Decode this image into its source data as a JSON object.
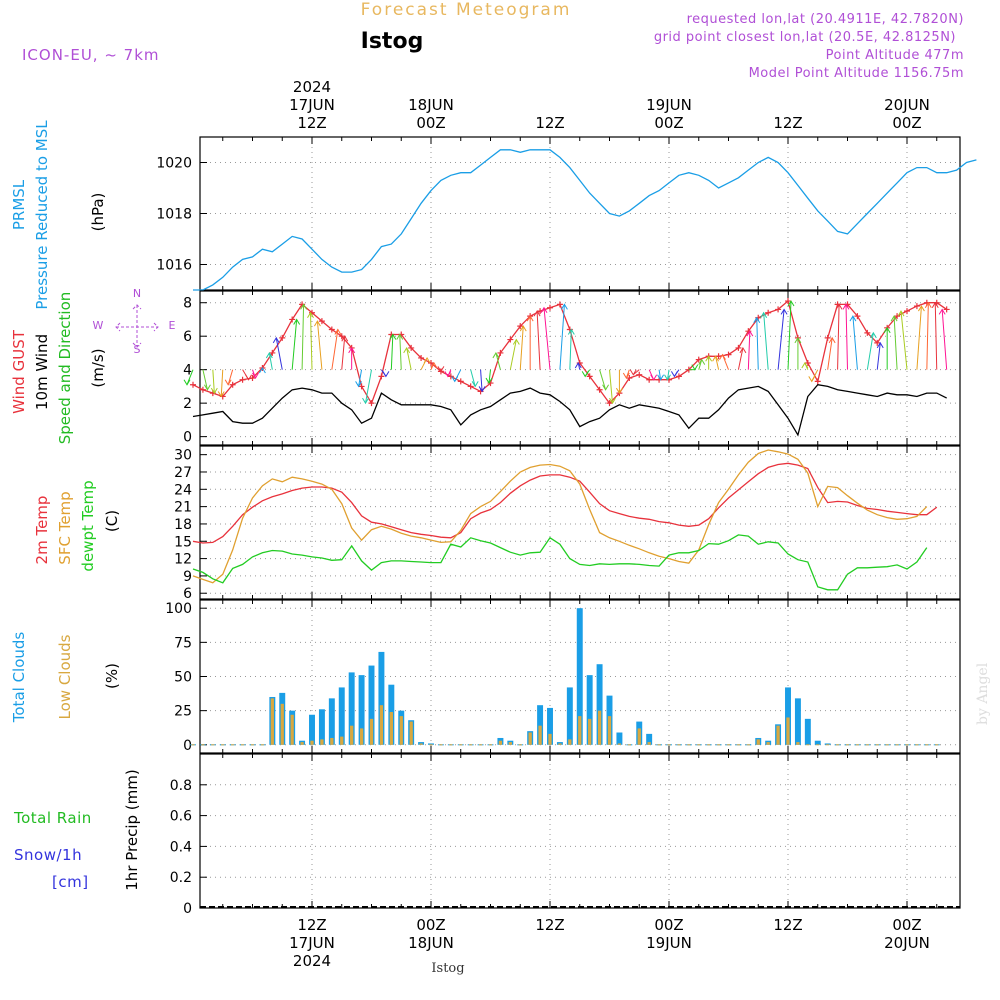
{
  "header": {
    "title": "Forecast Meteogram",
    "location": "Istog",
    "model": "ICON-EU,  ~ 7km",
    "requested": "requested lon,lat (20.4911E, 42.7820N)",
    "grid": "grid point closest lon,lat (20.5E, 42.8125N)",
    "point_alt": "Point Altitude 477m",
    "model_alt": "Model Point Altitude 1156.75m",
    "watermark": "by Angel",
    "footer_location": "Istog"
  },
  "time_axis": {
    "top_labels": [
      {
        "lines": [
          "2024",
          "17JUN",
          "12Z"
        ],
        "t": 12
      },
      {
        "lines": [
          "18JUN",
          "00Z"
        ],
        "t": 24
      },
      {
        "lines": [
          "12Z"
        ],
        "t": 36
      },
      {
        "lines": [
          "19JUN",
          "00Z"
        ],
        "t": 48
      },
      {
        "lines": [
          "12Z"
        ],
        "t": 60
      },
      {
        "lines": [
          "20JUN",
          "00Z"
        ],
        "t": 72
      }
    ],
    "bottom_labels": [
      {
        "lines": [
          "12Z",
          "17JUN",
          "2024"
        ],
        "t": 12
      },
      {
        "lines": [
          "00Z",
          "18JUN"
        ],
        "t": 24
      },
      {
        "lines": [
          "12Z"
        ],
        "t": 36
      },
      {
        "lines": [
          "00Z",
          "19JUN"
        ],
        "t": 48
      },
      {
        "lines": [
          "12Z"
        ],
        "t": 60
      },
      {
        "lines": [
          "00Z",
          "20JUN"
        ],
        "t": 72
      }
    ]
  },
  "colors": {
    "pressure": "#1a9ee6",
    "gust": "#e8323c",
    "wind": "#000000",
    "wind_dir_label": "#22bb22",
    "compass": "#b04fd6",
    "temp2m": "#e8323c",
    "sfc": "#e0a030",
    "dewpt": "#22cc22",
    "total_cloud": "#1a9ee6",
    "low_cloud": "#d8a840",
    "rain": "#22bb22",
    "snow": "#3333dd",
    "title": "#e8b860",
    "info": "#b04fd6"
  },
  "chart_data": [
    {
      "type": "line",
      "panel": "pressure",
      "ylabels": [
        "PRMSL",
        "Pressure Reduced to MSL",
        "(hPa)"
      ],
      "unit": "hPa",
      "ylim": [
        1015,
        1021
      ],
      "yticks": [
        1016,
        1018,
        1020
      ],
      "x_hours_from": 0,
      "x_step_hours": 1,
      "series": [
        {
          "values": [
            1015.0,
            1015.0,
            1015.2,
            1015.5,
            1015.9,
            1016.2,
            1016.3,
            1016.6,
            1016.5,
            1016.8,
            1017.1,
            1017.0,
            1016.6,
            1016.2,
            1015.9,
            1015.7,
            1015.7,
            1015.8,
            1016.2,
            1016.7,
            1016.8,
            1017.2,
            1017.8,
            1018.4,
            1018.9,
            1019.3,
            1019.5,
            1019.6,
            1019.6,
            1019.9,
            1020.2,
            1020.5,
            1020.5,
            1020.4,
            1020.5,
            1020.5,
            1020.5,
            1020.2,
            1019.8,
            1019.3,
            1018.8,
            1018.4,
            1018.0,
            1017.9,
            1018.1,
            1018.4,
            1018.7,
            1018.9,
            1019.2,
            1019.5,
            1019.6,
            1019.5,
            1019.3,
            1019.0,
            1019.2,
            1019.4,
            1019.7,
            1020.0,
            1020.2,
            1020.0,
            1019.6,
            1019.1,
            1018.6,
            1018.1,
            1017.7,
            1017.3,
            1017.2,
            1017.6,
            1018.0,
            1018.4,
            1018.8,
            1019.2,
            1019.6,
            1019.8,
            1019.8,
            1019.6,
            1019.6,
            1019.7,
            1020.0,
            1020.1
          ]
        }
      ]
    },
    {
      "type": "line",
      "panel": "wind",
      "ylabels": [
        "Wind GUST",
        "10m Wind",
        "Speed and Direction",
        "(m/s)"
      ],
      "compass": [
        "N",
        "S",
        "W",
        "E"
      ],
      "unit": "m/s",
      "ylim": [
        -0.5,
        8.7
      ],
      "yticks": [
        0,
        2,
        4,
        6,
        8
      ],
      "arrow_base": 4,
      "x_hours_from": 0,
      "x_step_hours": 1,
      "series": [
        {
          "name": "Wind GUST",
          "values": [
            3.1,
            2.8,
            2.6,
            2.4,
            3.1,
            3.4,
            3.5,
            4.1,
            5.0,
            5.9,
            7.0,
            7.9,
            7.4,
            6.9,
            6.4,
            6.0,
            5.3,
            3.0,
            2.0,
            3.6,
            6.1,
            6.1,
            5.3,
            4.7,
            4.4,
            3.9,
            3.6,
            3.3,
            3.0,
            2.7,
            3.2,
            5.0,
            5.8,
            6.6,
            7.2,
            7.5,
            7.7,
            7.9,
            6.4,
            4.4,
            3.6,
            2.8,
            2.0,
            2.6,
            3.5,
            3.7,
            3.4,
            3.4,
            3.4,
            3.6,
            4.0,
            4.6,
            4.8,
            4.8,
            4.9,
            5.3,
            6.3,
            7.1,
            7.4,
            7.6,
            8.1,
            5.9,
            4.4,
            3.3,
            5.9,
            7.9,
            7.9,
            7.2,
            6.2,
            5.6,
            6.5,
            7.2,
            7.5,
            7.8,
            8.0,
            8.0,
            7.6
          ]
        },
        {
          "name": "10m Wind",
          "values": [
            1.2,
            1.3,
            1.4,
            1.5,
            0.9,
            0.8,
            0.8,
            1.1,
            1.7,
            2.3,
            2.8,
            2.9,
            2.8,
            2.6,
            2.6,
            2.0,
            1.6,
            0.8,
            1.1,
            2.6,
            2.2,
            1.9,
            1.9,
            1.9,
            1.9,
            1.8,
            1.6,
            0.7,
            1.3,
            1.6,
            1.8,
            2.2,
            2.6,
            2.7,
            2.9,
            2.6,
            2.5,
            2.1,
            1.6,
            0.6,
            0.9,
            1.1,
            1.6,
            1.9,
            1.7,
            1.9,
            1.8,
            1.7,
            1.5,
            1.3,
            0.5,
            1.1,
            1.1,
            1.6,
            2.3,
            2.8,
            2.9,
            3.0,
            2.7,
            1.9,
            1.1,
            0.1,
            2.4,
            3.1,
            3.0,
            2.8,
            2.7,
            2.6,
            2.5,
            2.4,
            2.6,
            2.5,
            2.5,
            2.4,
            2.6,
            2.6,
            2.3
          ]
        }
      ],
      "dir_arrows": "colored arrows showing 10m wind direction"
    },
    {
      "type": "line",
      "panel": "temperature",
      "ylabels": [
        "2m Temp",
        "SFC Temp",
        "dewpt Temp",
        "(C)"
      ],
      "unit": "C",
      "ylim": [
        5,
        31.5
      ],
      "yticks": [
        6,
        9,
        12,
        15,
        18,
        21,
        24,
        27,
        30
      ],
      "x_hours_from": 0,
      "x_step_hours": 1,
      "series": [
        {
          "name": "2m Temp",
          "values": [
            15.0,
            14.7,
            14.8,
            15.8,
            17.6,
            19.6,
            20.9,
            22.0,
            22.7,
            23.2,
            23.8,
            24.2,
            24.4,
            24.4,
            24.2,
            23.5,
            21.7,
            19.4,
            18.3,
            18.0,
            17.5,
            17.0,
            16.5,
            16.2,
            16.0,
            15.7,
            15.6,
            16.5,
            18.9,
            19.9,
            20.5,
            21.7,
            23.3,
            24.6,
            25.6,
            26.3,
            26.5,
            26.5,
            26.1,
            25.4,
            23.5,
            21.5,
            20.3,
            19.8,
            19.3,
            19.0,
            18.8,
            18.4,
            18.2,
            17.8,
            17.6,
            17.8,
            18.9,
            20.8,
            22.5,
            23.9,
            25.3,
            26.7,
            27.8,
            28.3,
            28.5,
            28.2,
            27.6,
            24.3,
            21.7,
            21.9,
            21.8,
            21.2,
            20.7,
            20.5,
            20.2,
            20.0,
            19.8,
            19.6,
            19.6,
            20.9
          ]
        },
        {
          "name": "SFC Temp",
          "values": [
            9.0,
            8.4,
            7.8,
            9.3,
            13.5,
            19.0,
            22.5,
            24.6,
            25.8,
            25.3,
            26.1,
            25.8,
            25.4,
            24.9,
            24.0,
            21.5,
            17.3,
            15.2,
            17.0,
            17.6,
            17.1,
            16.4,
            15.9,
            15.6,
            15.2,
            14.8,
            14.9,
            16.9,
            19.8,
            21.0,
            21.9,
            23.6,
            25.4,
            27.0,
            27.8,
            28.2,
            28.3,
            28.0,
            27.2,
            24.9,
            20.5,
            16.5,
            15.6,
            15.0,
            14.3,
            13.7,
            13.0,
            12.4,
            12.0,
            11.5,
            11.2,
            13.5,
            17.9,
            21.7,
            24.0,
            26.5,
            28.7,
            30.2,
            30.8,
            30.5,
            30.1,
            29.2,
            26.8,
            21.0,
            24.5,
            24.3,
            22.9,
            21.6,
            20.4,
            19.6,
            19.1,
            18.8,
            18.9,
            19.3,
            21.0
          ]
        },
        {
          "name": "dewpt Temp",
          "values": [
            10.2,
            9.6,
            8.5,
            7.8,
            10.3,
            11.0,
            12.3,
            13.0,
            13.4,
            13.3,
            12.8,
            12.6,
            12.3,
            12.1,
            11.7,
            11.8,
            14.2,
            11.6,
            10.0,
            11.3,
            11.6,
            11.6,
            11.5,
            11.4,
            11.3,
            11.3,
            14.5,
            14.0,
            15.6,
            15.1,
            14.7,
            13.9,
            13.1,
            12.6,
            13.0,
            13.1,
            15.6,
            14.5,
            12.0,
            11.0,
            10.8,
            11.1,
            11.0,
            11.1,
            11.1,
            11.0,
            10.8,
            10.7,
            12.6,
            13.0,
            13.0,
            13.4,
            14.6,
            14.5,
            15.1,
            16.1,
            15.9,
            14.5,
            14.9,
            14.7,
            12.8,
            11.8,
            11.4,
            7.1,
            6.6,
            6.6,
            9.3,
            10.4,
            10.4,
            10.5,
            10.6,
            10.9,
            10.2,
            11.4,
            13.9
          ]
        }
      ]
    },
    {
      "type": "bar",
      "panel": "clouds",
      "ylabels": [
        "Total Clouds",
        "Low Clouds",
        "(%)"
      ],
      "unit": "%",
      "ylim": [
        -6,
        106
      ],
      "yticks": [
        0,
        25,
        50,
        75,
        100
      ],
      "x_hours_from": 0,
      "x_step_hours": 1,
      "series": [
        {
          "name": "Total Clouds",
          "values": [
            0,
            0,
            0,
            0,
            0,
            0,
            0,
            0,
            35,
            38,
            25,
            3,
            22,
            26,
            34,
            42,
            53,
            51,
            58,
            68,
            44,
            25,
            18,
            2,
            1,
            0,
            0,
            0,
            0,
            0,
            0,
            5,
            3,
            0,
            10,
            29,
            27,
            2,
            42,
            100,
            51,
            59,
            36,
            9,
            0,
            17,
            8,
            0,
            0,
            0,
            0,
            0,
            0,
            0,
            0,
            0,
            0,
            5,
            3,
            15,
            42,
            34,
            19,
            3,
            1,
            0,
            0,
            0,
            0,
            0,
            0,
            0,
            0,
            0,
            0,
            0
          ]
        },
        {
          "name": "Low Clouds",
          "values": [
            0,
            0,
            0,
            0,
            0,
            0,
            0,
            0,
            34,
            30,
            22,
            2,
            3,
            4,
            5,
            6,
            14,
            12,
            19,
            29,
            24,
            21,
            17,
            1,
            0,
            0,
            0,
            0,
            0,
            0,
            0,
            3,
            2,
            0,
            9,
            14,
            8,
            1,
            4,
            21,
            19,
            25,
            21,
            1,
            0,
            12,
            2,
            0,
            0,
            0,
            0,
            0,
            0,
            0,
            0,
            0,
            0,
            4,
            2,
            14,
            20,
            2,
            0,
            0,
            0,
            0,
            0,
            0,
            0,
            0,
            0,
            0,
            0,
            0,
            0,
            0
          ]
        }
      ]
    },
    {
      "type": "bar",
      "panel": "precip",
      "ylabels": [
        "1hr Precip (mm)"
      ],
      "left_labels": [
        "Total  Rain",
        "Snow/1h",
        "[cm]"
      ],
      "unit": "mm",
      "ylim": [
        0,
        1.0
      ],
      "yticks": [
        0,
        0.2,
        0.4,
        0.6,
        0.8
      ],
      "series": [
        {
          "name": "Total  Rain",
          "values": []
        },
        {
          "name": "Snow/1h",
          "values": []
        }
      ]
    }
  ]
}
